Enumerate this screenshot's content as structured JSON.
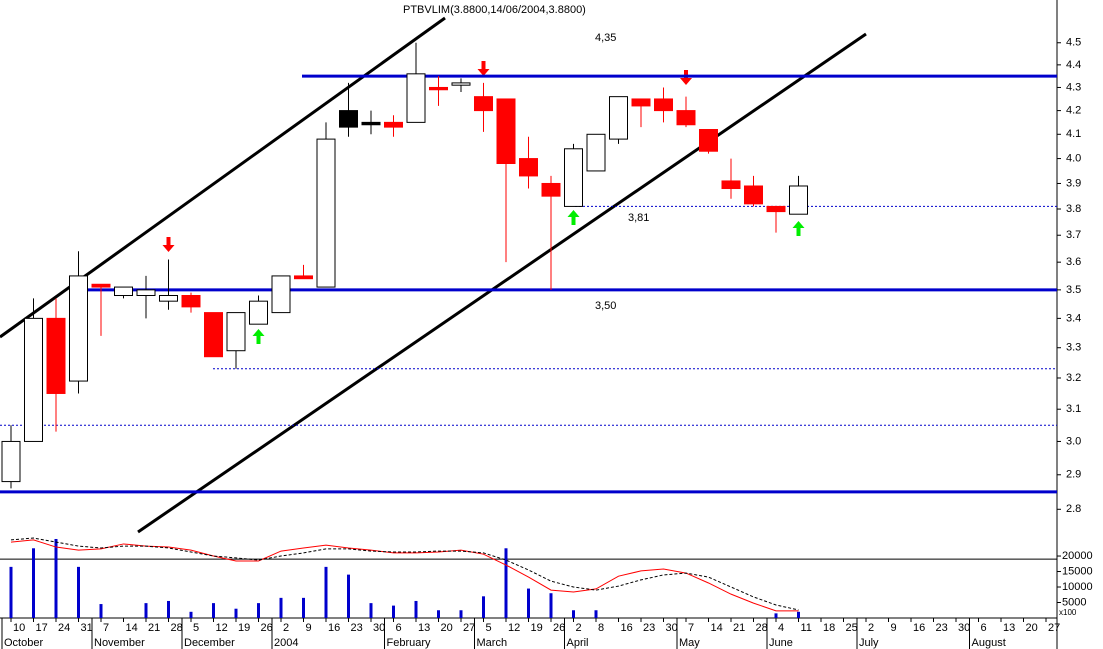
{
  "chart_data": [
    {
      "type": "candlestick",
      "title": "PTBVLIM(3.8800,14/06/2004,3.8800)",
      "categories": [
        "10",
        "17",
        "24",
        "31",
        "7",
        "14",
        "21",
        "28",
        "5",
        "12",
        "19",
        "26",
        "2",
        "9",
        "16",
        "23",
        "30",
        "6",
        "13",
        "20",
        "27",
        "5",
        "12",
        "19",
        "26",
        "2",
        "8",
        "16",
        "23",
        "30",
        "7",
        "14",
        "21",
        "28",
        "4",
        "11",
        "18",
        "25",
        "2",
        "9",
        "16",
        "23",
        "30",
        "6",
        "13",
        "20",
        "27"
      ],
      "months": [
        "October",
        null,
        null,
        null,
        "November",
        null,
        null,
        null,
        "December",
        null,
        null,
        null,
        "2004",
        null,
        null,
        null,
        null,
        "February",
        null,
        null,
        null,
        "March",
        null,
        null,
        null,
        "April",
        null,
        null,
        null,
        null,
        "May",
        null,
        null,
        null,
        "June",
        null,
        null,
        null,
        "July",
        null,
        null,
        null,
        null,
        "August",
        null,
        null,
        null
      ],
      "open": [
        2.88,
        3.0,
        3.4,
        3.19,
        3.52,
        3.48,
        3.48,
        3.46,
        3.48,
        3.42,
        3.29,
        3.38,
        3.42,
        3.55,
        3.51,
        4.13,
        4.15,
        4.15,
        4.15,
        4.3,
        4.31,
        4.26,
        4.25,
        4.0,
        3.9,
        3.81,
        3.95,
        4.08,
        4.25,
        4.25,
        4.2,
        4.12,
        3.91,
        3.89,
        3.81,
        3.78,
        null,
        null,
        null,
        null,
        null,
        null,
        null,
        null,
        null,
        null,
        null
      ],
      "high": [
        3.05,
        3.47,
        3.47,
        3.64,
        3.52,
        3.51,
        3.55,
        3.61,
        3.49,
        3.42,
        3.42,
        3.48,
        3.55,
        3.59,
        4.15,
        4.32,
        4.2,
        4.18,
        4.5,
        4.35,
        4.34,
        4.32,
        4.25,
        4.09,
        3.93,
        4.06,
        4.1,
        4.26,
        4.25,
        4.3,
        4.26,
        4.12,
        4.0,
        3.93,
        3.81,
        3.93,
        null,
        null,
        null,
        null,
        null,
        null,
        null,
        null,
        null,
        null,
        null
      ],
      "low": [
        2.86,
        3.0,
        3.03,
        3.15,
        3.34,
        3.47,
        3.4,
        3.43,
        3.42,
        3.27,
        3.23,
        3.38,
        3.42,
        3.54,
        3.51,
        4.09,
        4.1,
        4.09,
        4.15,
        4.22,
        4.28,
        4.11,
        3.6,
        3.88,
        3.5,
        3.81,
        3.95,
        4.06,
        4.13,
        4.15,
        4.13,
        4.02,
        3.84,
        3.81,
        3.71,
        3.78,
        null,
        null,
        null,
        null,
        null,
        null,
        null,
        null,
        null,
        null,
        null
      ],
      "close": [
        3.0,
        3.4,
        3.15,
        3.55,
        3.51,
        3.51,
        3.5,
        3.48,
        3.44,
        3.27,
        3.42,
        3.46,
        3.55,
        3.54,
        4.08,
        4.2,
        4.14,
        4.13,
        4.36,
        4.29,
        4.32,
        4.2,
        3.98,
        3.93,
        3.85,
        4.04,
        4.1,
        4.26,
        4.22,
        4.2,
        4.14,
        4.03,
        3.88,
        3.82,
        3.79,
        3.89,
        null,
        null,
        null,
        null,
        null,
        null,
        null,
        null,
        null,
        null,
        null
      ],
      "colors": [
        "#ffffff",
        "#ffffff",
        "#ff0000",
        "#ffffff",
        "#ff0000",
        "#ffffff",
        "#ffffff",
        "#ffffff",
        "#ff0000",
        "#ff0000",
        "#ffffff",
        "#ffffff",
        "#ffffff",
        "#ff0000",
        "#ffffff",
        "#000000",
        "#000000",
        "#ff0000",
        "#ffffff",
        "#ff0000",
        "#ffffff",
        "#ff0000",
        "#ff0000",
        "#ff0000",
        "#ff0000",
        "#ffffff",
        "#ffffff",
        "#ffffff",
        "#ff0000",
        "#ff0000",
        "#ff0000",
        "#ff0000",
        "#ff0000",
        "#ff0000",
        "#ff0000",
        "#ffffff",
        null,
        null,
        null,
        null,
        null,
        null,
        null,
        null,
        null,
        null,
        null
      ],
      "ylim": [
        2.75,
        4.7
      ],
      "log_scale": true,
      "yticks": [
        2.8,
        2.9,
        {
          "value": 3,
          "label": "3.0"
        },
        3.1,
        3.2,
        3.3,
        3.4,
        3.5,
        3.6,
        3.7,
        3.8,
        3.9,
        {
          "value": 4,
          "label": "4.0"
        },
        4.1,
        4.2,
        4.3,
        4.4,
        4.5
      ],
      "hlines": [
        {
          "value": 4.35,
          "color": "#0000cc",
          "style": "solid"
        },
        {
          "value": 3.5,
          "color": "#0000cc",
          "style": "solid"
        },
        {
          "value": 2.85,
          "color": "#0000cc",
          "style": "solid"
        },
        {
          "value": 3.81,
          "color": "#0000cc",
          "style": "dotted"
        },
        {
          "value": 3.23,
          "color": "#0000cc",
          "style": "dotted"
        },
        {
          "value": 3.05,
          "color": "#0000cc",
          "style": "dotted"
        }
      ],
      "annotations": [
        "4,35",
        "3,81",
        "3,50"
      ]
    },
    {
      "type": "volume",
      "values": [
        16500,
        22500,
        25500,
        16500,
        4500,
        0,
        4800,
        5500,
        2000,
        4800,
        3000,
        4800,
        6500,
        6500,
        16500,
        14000,
        4800,
        4000,
        5500,
        2500,
        2500,
        7000,
        22500,
        9500,
        8000,
        2500,
        2500,
        0,
        0,
        0,
        0,
        0,
        0,
        0,
        1500,
        2000,
        null,
        null,
        null,
        null,
        null,
        null,
        null,
        null,
        null,
        null,
        null
      ],
      "color": "#0000cc",
      "lines": [
        {
          "color": "#ff0000",
          "style": "solid",
          "values": [
            24500,
            25200,
            22900,
            21900,
            22300,
            23900,
            23200,
            22900,
            21900,
            20000,
            18400,
            18400,
            21600,
            22600,
            23500,
            22600,
            21900,
            21000,
            21000,
            21300,
            21900,
            20600,
            17100,
            13200,
            9000,
            8400,
            9400,
            13500,
            15200,
            15800,
            14500,
            11300,
            7700,
            4800,
            2300,
            2300,
            null,
            null,
            null,
            null,
            null,
            null,
            null,
            null,
            null,
            null,
            null
          ]
        },
        {
          "color": "#000000",
          "style": "dashed",
          "values": [
            25200,
            25800,
            24500,
            23200,
            22600,
            23200,
            23200,
            22600,
            21300,
            20000,
            19400,
            18700,
            20000,
            21000,
            22300,
            22300,
            21600,
            21300,
            21300,
            21600,
            21600,
            21000,
            18700,
            15500,
            11900,
            10000,
            9000,
            10300,
            12300,
            13900,
            14500,
            13200,
            10000,
            6800,
            4200,
            2600,
            null,
            null,
            null,
            null,
            null,
            null,
            null,
            null,
            null,
            null,
            null
          ]
        }
      ],
      "hline": 19000,
      "ylim": [
        0,
        28400
      ],
      "yticks": [
        5000,
        10000,
        15000,
        20000
      ],
      "unit_label": "x100"
    }
  ]
}
